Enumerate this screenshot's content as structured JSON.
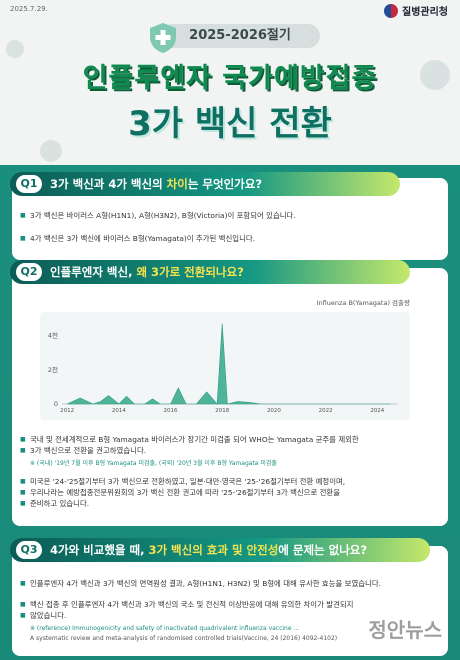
{
  "header": {
    "date": "2025.7.29.",
    "agency": "질병관리청",
    "season": "2025-2026절기",
    "title_line1": "인플루엔자 국가예방접종",
    "title_line2": "3가 백신 전환"
  },
  "q1": {
    "num": "Q1",
    "q_pre": "3가 백신과 4가 백신의 ",
    "q_hl": "차이",
    "q_post": "는 무엇인가요?",
    "bullets": [
      "3가 백신은 바이러스 A형(H1N1), A형(H3N2), B형(Victoria)이 포함되어 있습니다.",
      "4가 백신은 3가 백신에 바이러스 B형(Yamagata)이 추가된 백신입니다."
    ]
  },
  "q2": {
    "num": "Q2",
    "q_pre": "인플루엔자 백신, ",
    "q_hl": "왜 3가로 전환되나요?",
    "bullets": [
      "국내 및 전세계적으로 B형 Yamagata 바이러스가 장기간 미검출 되어 WHO는 Yamagata 균주를 제외한",
      "3가 백신으로 전환을 권고하였습니다.",
      "미국은 '24-'25절기부터 3가 백신으로 전환하였고, 일본·대만·영국은 '25-'26절기부터 전환 예정이며,",
      "우리나라는 예방접종전문위원회의 3가 백신 전환 권고에 따라 '25-'26절기부터 3가 백신으로 전환을",
      "준비하고 있습니다."
    ],
    "note": "※ (국내) '19년 7월 이후 B형 Yamagata 미검출, (국외) '20년 3월 이후 B형 Yamagata 미검출"
  },
  "q3": {
    "num": "Q3",
    "q_pre": "4가와 비교했을 때, ",
    "q_hl1": "3가 백신의 효과 및 안전성",
    "q_post": "에 문제는 없나요?",
    "bullets": [
      "인플루엔자 4가 백신과 3가 백신의 면역원성 결과, A형(H1N1, H3N2) 및 B형에 대해 유사한 효능을 보였습니다.",
      "백신 접종 후 인플루엔자 4가 백신과 3가 백신의 국소 및 전신적 이상반응에 대해 유의한 차이가 발견되지",
      "않았습니다."
    ],
    "ref1": "※ (reference) Immunogenicity and safety of inactivated quadrivalent influenza vaccine ...",
    "ref2": "A systematic review and meta-analysis of randomised controlled trials(Vaccine, 24 (2016) 4092-4102)"
  },
  "watermark": "정안뉴스",
  "chart_data": {
    "type": "line",
    "legend": "Influenza B(Yamagata) 검출량",
    "x_ticks": [
      "2012",
      "2014",
      "2016",
      "2018",
      "2020",
      "2022",
      "2024"
    ],
    "y_ticks": [
      "0",
      "2천",
      "4천"
    ],
    "ylim": [
      0,
      4800
    ],
    "x": [
      2012.0,
      2012.5,
      2013.0,
      2013.3,
      2013.6,
      2014.0,
      2014.3,
      2014.6,
      2015.0,
      2015.3,
      2015.6,
      2016.0,
      2016.3,
      2016.6,
      2017.0,
      2017.4,
      2017.8,
      2018.0,
      2018.2,
      2018.6,
      2019.0,
      2019.5,
      2020.0,
      2024.5
    ],
    "y": [
      0,
      350,
      0,
      150,
      500,
      0,
      450,
      0,
      0,
      300,
      0,
      0,
      950,
      0,
      0,
      700,
      0,
      4700,
      0,
      150,
      100,
      0,
      0,
      0
    ]
  },
  "colors": {
    "accent": "#1b8f7e",
    "title_green": "#0f8a4f",
    "highlight": "#f5e34f"
  }
}
